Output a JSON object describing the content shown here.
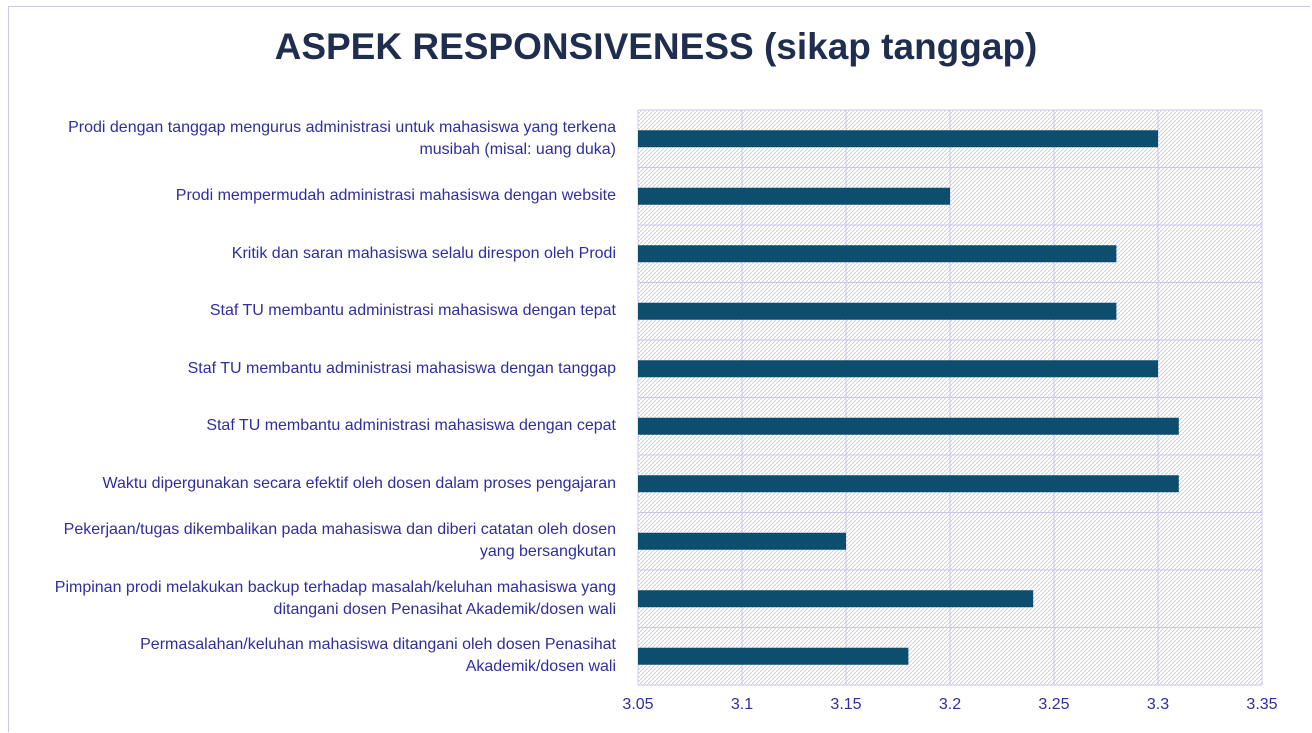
{
  "chart_data": {
    "type": "bar",
    "orientation": "horizontal",
    "title": "ASPEK RESPONSIVENESS (sikap tanggap)",
    "categories": [
      "Prodi dengan tanggap mengurus administrasi untuk mahasiswa yang terkena musibah (misal: uang duka)",
      "Prodi mempermudah administrasi mahasiswa dengan website",
      "Kritik dan saran mahasiswa selalu direspon oleh Prodi",
      "Staf TU membantu administrasi mahasiswa dengan tepat",
      "Staf TU membantu administrasi mahasiswa dengan tanggap",
      "Staf TU membantu administrasi mahasiswa dengan cepat",
      "Waktu dipergunakan secara efektif oleh dosen dalam proses pengajaran",
      "Pekerjaan/tugas dikembalikan pada mahasiswa dan diberi catatan oleh dosen yang bersangkutan",
      "Pimpinan prodi melakukan backup terhadap masalah/keluhan mahasiswa yang ditangani dosen Penasihat Akademik/dosen wali",
      "Permasalahan/keluhan mahasiswa ditangani oleh dosen Penasihat Akademik/dosen wali"
    ],
    "values": [
      3.3,
      3.2,
      3.28,
      3.28,
      3.3,
      3.31,
      3.31,
      3.15,
      3.24,
      3.18
    ],
    "color": "#0d4e6e",
    "xlim": [
      3.05,
      3.35
    ],
    "xticks": [
      3.05,
      3.1,
      3.15,
      3.2,
      3.25,
      3.3,
      3.35
    ],
    "grid": true
  }
}
